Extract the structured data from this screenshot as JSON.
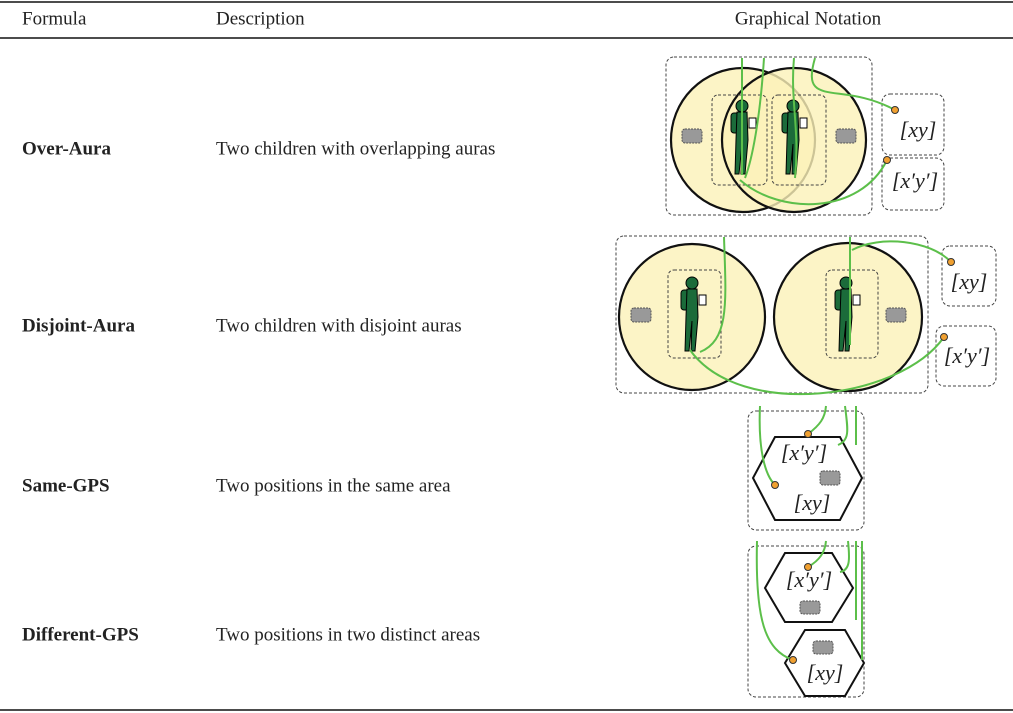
{
  "table": {
    "headers": [
      "Formula",
      "Description",
      "Graphical Notation"
    ],
    "rows": [
      {
        "formula": "Over-Aura",
        "description": "Two children with overlapping auras",
        "notation": [
          "[xy]",
          "[x′y′]"
        ]
      },
      {
        "formula": "Disjoint-Aura",
        "description": "Two children with disjoint auras",
        "notation": [
          "[xy]",
          "[x′y′]"
        ]
      },
      {
        "formula": "Same-GPS",
        "description": "Two positions in the same area",
        "notation": [
          "[x′y′]",
          "[xy]"
        ]
      },
      {
        "formula": "Different-GPS",
        "description": "Two positions in two distinct areas",
        "notation": [
          "[x′y′]",
          "[xy]"
        ]
      }
    ]
  }
}
